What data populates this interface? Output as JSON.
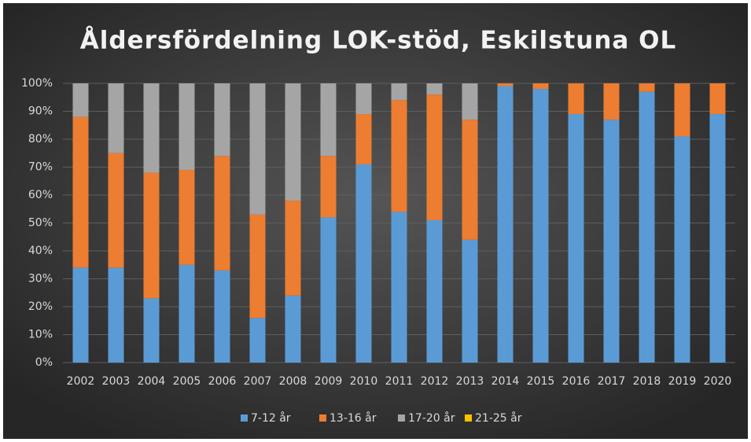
{
  "chart_data": {
    "type": "stacked_bar_100",
    "title": "Åldersfördelning LOK-stöd, Eskilstuna OL",
    "categories": [
      "2002",
      "2003",
      "2004",
      "2005",
      "2006",
      "2007",
      "2008",
      "2009",
      "2010",
      "2011",
      "2012",
      "2013",
      "2014",
      "2015",
      "2016",
      "2017",
      "2018",
      "2019",
      "2020"
    ],
    "series": [
      {
        "name": "7-12 år",
        "color": "#5b9bd5",
        "values": [
          34,
          34,
          23,
          35,
          33,
          16,
          24,
          52,
          71,
          54,
          51,
          44,
          99,
          98,
          89,
          87,
          97,
          81,
          89
        ]
      },
      {
        "name": "13-16 år",
        "color": "#ed7d31",
        "values": [
          54,
          41,
          45,
          34,
          41,
          37,
          34,
          22,
          18,
          40,
          45,
          43,
          1,
          2,
          11,
          13,
          3,
          19,
          11
        ]
      },
      {
        "name": "17-20 år",
        "color": "#a5a5a5",
        "values": [
          12,
          25,
          32,
          31,
          26,
          47,
          42,
          26,
          11,
          6,
          4,
          13,
          0,
          0,
          0,
          0,
          0,
          0,
          0
        ]
      },
      {
        "name": "21-25 år",
        "color": "#ffc000",
        "values": [
          0,
          0,
          0,
          0,
          0,
          0,
          0,
          0,
          0,
          0,
          0,
          0,
          0,
          0,
          0,
          0,
          0,
          0,
          0
        ]
      }
    ],
    "ylim": [
      0,
      100
    ],
    "yticks": [
      {
        "value": 0,
        "label": "0%"
      },
      {
        "value": 10,
        "label": "10%"
      },
      {
        "value": 20,
        "label": "20%"
      },
      {
        "value": 30,
        "label": "30%"
      },
      {
        "value": 40,
        "label": "40%"
      },
      {
        "value": 50,
        "label": "50%"
      },
      {
        "value": 60,
        "label": "60%"
      },
      {
        "value": 70,
        "label": "70%"
      },
      {
        "value": 80,
        "label": "80%"
      },
      {
        "value": 90,
        "label": "90%"
      },
      {
        "value": 100,
        "label": "100%"
      }
    ],
    "grid": true,
    "legend": "bottom"
  }
}
